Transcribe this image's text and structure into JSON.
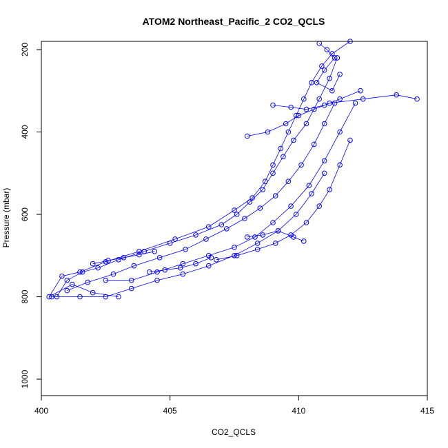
{
  "chart_data": {
    "type": "scatter",
    "title": "ATOM2 Northeast_Pacific_2 CO2_QCLS",
    "xlabel": "CO2_QCLS",
    "ylabel": "Pressure (mbar)",
    "xlim": [
      400,
      415
    ],
    "ylim": [
      1040,
      180
    ],
    "y_inverted": true,
    "x_ticks": [
      "400",
      "405",
      "410",
      "415"
    ],
    "y_ticks": [
      "200",
      "400",
      "600",
      "800",
      "1000"
    ],
    "marker": "open-circle",
    "color": "#0000ff",
    "series": [
      {
        "x": [
          403.0,
          402.0,
          401.2,
          400.3,
          400.8,
          401.5,
          402.5,
          403.8,
          405.2,
          406.5,
          407.5,
          408.2,
          408.7,
          409.0,
          409.3,
          409.6,
          409.9,
          410.2,
          410.5,
          410.9,
          411.3,
          412.0
        ],
        "y": [
          800,
          790,
          770,
          800,
          750,
          740,
          715,
          690,
          660,
          630,
          590,
          560,
          520,
          480,
          440,
          400,
          360,
          320,
          280,
          240,
          210,
          180
        ]
      },
      {
        "x": [
          400.6,
          401.0,
          401.6,
          402.2,
          403.0,
          404.0,
          405.0,
          406.0,
          407.0,
          407.6,
          408.1,
          408.6,
          409.0,
          409.4,
          409.8,
          410.3,
          410.8,
          411.2,
          411.5
        ],
        "y": [
          800,
          760,
          740,
          730,
          710,
          690,
          670,
          650,
          625,
          600,
          570,
          540,
          500,
          460,
          420,
          380,
          320,
          270,
          220
        ]
      },
      {
        "x": [
          401.0,
          401.8,
          402.8,
          403.6,
          404.6,
          405.6,
          406.4,
          407.2,
          407.9,
          408.5,
          409.1,
          409.6,
          410.1,
          410.6,
          411.0,
          411.4
        ],
        "y": [
          785,
          765,
          745,
          725,
          705,
          685,
          660,
          635,
          610,
          585,
          555,
          520,
          480,
          430,
          380,
          330
        ]
      },
      {
        "x": [
          402.5,
          403.5,
          404.5,
          405.5,
          406.5,
          407.5,
          408.3,
          409.0,
          409.7,
          410.4,
          411.0,
          411.6,
          412.2
        ],
        "y": [
          760,
          760,
          740,
          720,
          700,
          680,
          655,
          620,
          580,
          530,
          470,
          400,
          330
        ]
      },
      {
        "x": [
          400.4,
          401.5,
          402.5,
          403.5,
          404.5,
          405.5,
          406.5,
          407.5,
          408.4,
          409.2,
          409.9,
          410.5,
          411.0
        ],
        "y": [
          800,
          800,
          800,
          780,
          760,
          745,
          725,
          700,
          670,
          640,
          600,
          550,
          500
        ]
      },
      {
        "x": [
          406.8,
          407.6,
          408.4,
          409.1,
          409.7,
          410.3,
          410.8,
          411.2,
          411.6,
          412.0
        ],
        "y": [
          710,
          700,
          685,
          670,
          650,
          620,
          580,
          540,
          480,
          420
        ]
      },
      {
        "x": [
          408.0,
          408.8,
          409.5,
          410.0,
          410.6,
          411.2,
          412.5,
          413.8,
          414.6
        ],
        "y": [
          410,
          400,
          380,
          360,
          345,
          330,
          320,
          310,
          320
        ]
      },
      {
        "x": [
          409.0,
          409.7,
          410.3,
          411.0,
          411.6,
          412.4
        ],
        "y": [
          335,
          340,
          345,
          335,
          320,
          300
        ]
      },
      {
        "x": [
          410.8,
          411.1,
          411.4,
          411.0,
          410.7,
          411.3,
          411.6
        ],
        "y": [
          185,
          200,
          220,
          250,
          280,
          300,
          260
        ]
      },
      {
        "x": [
          408.0,
          408.6,
          409.2,
          409.8,
          410.2
        ],
        "y": [
          655,
          650,
          640,
          655,
          665
        ]
      },
      {
        "x": [
          404.2,
          404.8,
          405.4,
          406.0,
          406.6
        ],
        "y": [
          740,
          735,
          730,
          720,
          705
        ]
      },
      {
        "x": [
          402.0,
          402.6,
          403.2,
          403.8,
          404.4
        ],
        "y": [
          720,
          712,
          705,
          698,
          690
        ]
      }
    ]
  }
}
